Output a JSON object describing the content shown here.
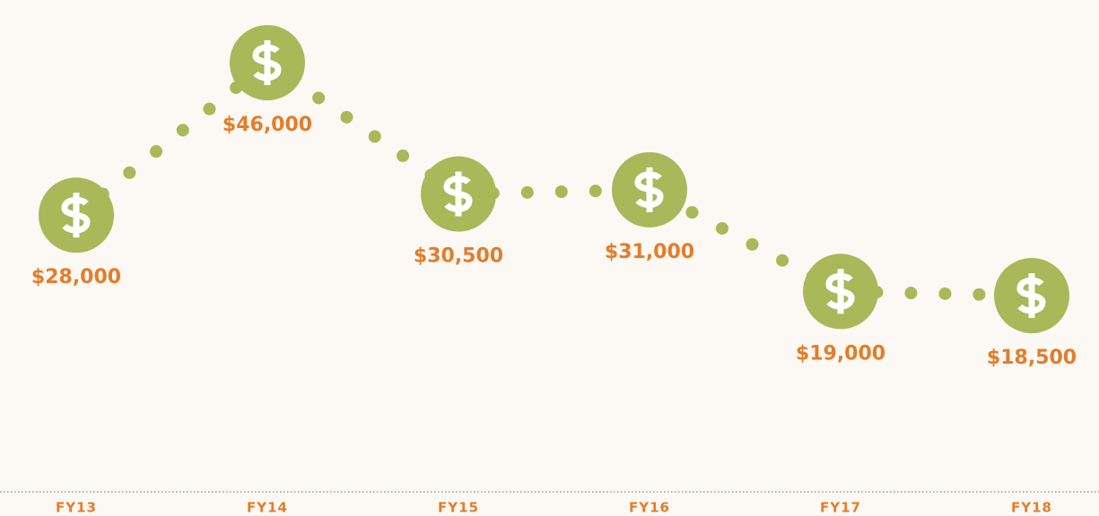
{
  "chart_data": {
    "type": "line",
    "categories": [
      "FY13",
      "FY14",
      "FY15",
      "FY16",
      "FY17",
      "FY18"
    ],
    "series": [
      {
        "color": "#a9b858",
        "values": [
          28000,
          46000,
          30500,
          31000,
          19000,
          18500
        ],
        "value_labels": [
          "$28,000",
          "$46,000",
          "$30,500",
          "$31,000",
          "$19,000",
          "$18,500"
        ]
      }
    ],
    "label_color": "#e37d2a"
  }
}
